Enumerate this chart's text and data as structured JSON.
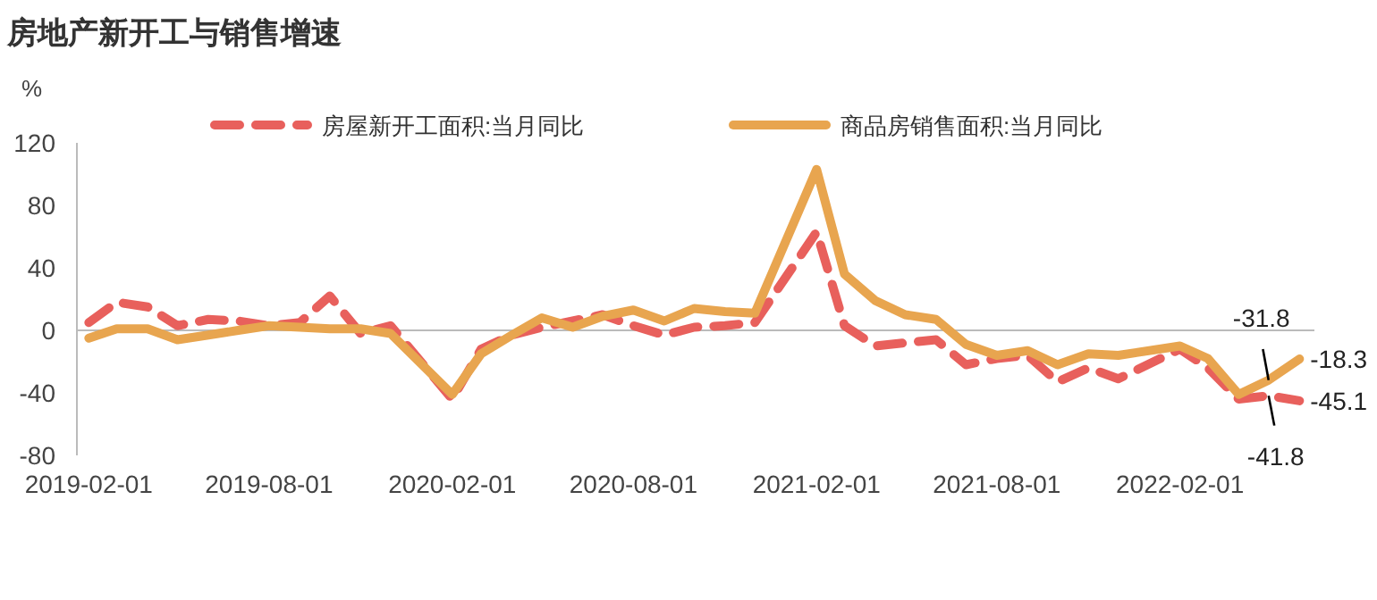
{
  "chart_data": {
    "type": "line",
    "title": "房地产新开工与销售增速",
    "ylabel": "%",
    "x": [
      "2019-02",
      "2019-03",
      "2019-04",
      "2019-05",
      "2019-06",
      "2019-07",
      "2019-08",
      "2019-09",
      "2019-10",
      "2019-11",
      "2019-12",
      "2020-02",
      "2020-03",
      "2020-04",
      "2020-05",
      "2020-06",
      "2020-07",
      "2020-08",
      "2020-09",
      "2020-10",
      "2020-11",
      "2020-12",
      "2021-02",
      "2021-03",
      "2021-04",
      "2021-05",
      "2021-06",
      "2021-07",
      "2021-08",
      "2021-09",
      "2021-10",
      "2021-11",
      "2021-12",
      "2022-02",
      "2022-03",
      "2022-04",
      "2022-05",
      "2022-06"
    ],
    "series": [
      {
        "name": "房屋新开工面积:当月同比",
        "color": "#e8605c",
        "line_style": "dashed",
        "values": [
          5,
          18,
          15,
          3,
          7,
          6,
          3,
          5,
          22,
          -2,
          3,
          -44,
          -12,
          -3,
          2,
          6,
          10,
          3,
          -3,
          2,
          3,
          5,
          63,
          3,
          -10,
          -8,
          -6,
          -22,
          -18,
          -16,
          -33,
          -24,
          -31,
          -12,
          -24,
          -44,
          -41.8,
          -45.1
        ]
      },
      {
        "name": "商品房销售面积:当月同比",
        "color": "#e8a54f",
        "line_style": "solid",
        "values": [
          -5,
          1,
          1,
          -6,
          -3,
          0,
          3,
          2,
          1,
          1,
          -2,
          -41,
          -15,
          -3,
          8,
          2,
          9,
          13,
          6,
          14,
          12,
          11,
          103,
          36,
          19,
          10,
          7,
          -9,
          -16,
          -13,
          -22,
          -15,
          -16,
          -10,
          -18,
          -41,
          -31.8,
          -18.3
        ]
      }
    ],
    "xlim": [
      "2019-01-20",
      "2022-06-16"
    ],
    "xticks": [
      {
        "value": "2019-02-01",
        "label": "2019-02-01"
      },
      {
        "value": "2019-08-01",
        "label": "2019-08-01"
      },
      {
        "value": "2020-02-01",
        "label": "2020-02-01"
      },
      {
        "value": "2020-08-01",
        "label": "2020-08-01"
      },
      {
        "value": "2021-02-01",
        "label": "2021-02-01"
      },
      {
        "value": "2021-08-01",
        "label": "2021-08-01"
      },
      {
        "value": "2022-02-01",
        "label": "2022-02-01"
      }
    ],
    "ylim": [
      -80,
      120
    ],
    "yticks": [
      -80,
      -40,
      0,
      40,
      80,
      120
    ],
    "grid": false,
    "ref_lines": [
      {
        "axis": "y",
        "value": 0,
        "color": "#bbbbbb"
      }
    ],
    "legend": "top",
    "marker": "none",
    "annotations": [
      {
        "text": "-31.8",
        "x": "2022-05",
        "y": -31.8
      },
      {
        "text": "-41.8",
        "x": "2022-05",
        "y": -41.8
      },
      {
        "text": "-18.3",
        "x": "2022-06",
        "y": -18.3
      },
      {
        "text": "-45.1",
        "x": "2022-06",
        "y": -45.1
      }
    ]
  }
}
